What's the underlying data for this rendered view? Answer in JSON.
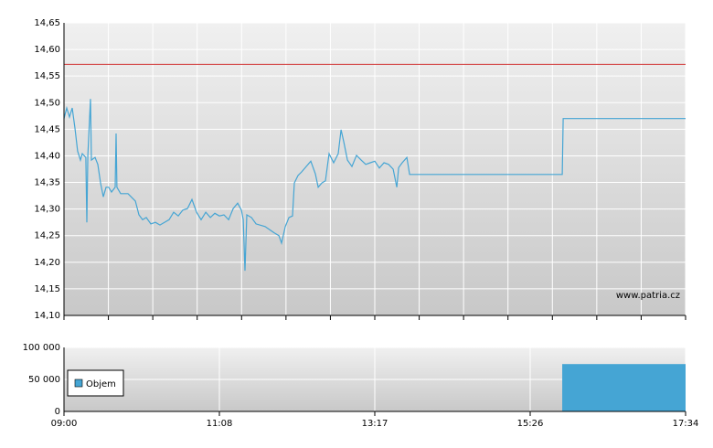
{
  "chart_data": [
    {
      "type": "line",
      "color": "#45a5d4",
      "reference_line": 14.572,
      "reference_color": "#d03030",
      "watermark": "www.patria.cz",
      "xlim": [
        540,
        1054
      ],
      "ylim": [
        14.1,
        14.65
      ],
      "yticks": [
        {
          "value": 14.1,
          "label": "14,10"
        },
        {
          "value": 14.15,
          "label": "14,15"
        },
        {
          "value": 14.2,
          "label": "14,20"
        },
        {
          "value": 14.25,
          "label": "14,25"
        },
        {
          "value": 14.3,
          "label": "14,30"
        },
        {
          "value": 14.35,
          "label": "14,35"
        },
        {
          "value": 14.4,
          "label": "14,40"
        },
        {
          "value": 14.45,
          "label": "14,45"
        },
        {
          "value": 14.5,
          "label": "14,50"
        },
        {
          "value": 14.55,
          "label": "14,55"
        },
        {
          "value": 14.6,
          "label": "14,60"
        },
        {
          "value": 14.65,
          "label": "14,65"
        }
      ],
      "grid": true,
      "x": [
        540.0,
        542.3,
        544.5,
        546.8,
        549.1,
        551.3,
        553.6,
        555.1,
        558.1,
        558.9,
        559.7,
        561.9,
        562.7,
        565.7,
        568.0,
        570.2,
        572.5,
        574.8,
        577.0,
        579.3,
        582.3,
        583.1,
        583.8,
        586.9,
        592.9,
        599.0,
        602.0,
        605.0,
        608.0,
        611.8,
        615.6,
        619.4,
        626.9,
        630.7,
        634.5,
        638.3,
        642.1,
        645.8,
        649.6,
        653.4,
        657.2,
        661.0,
        664.7,
        668.5,
        672.3,
        676.1,
        679.9,
        683.6,
        686.7,
        688.2,
        689.7,
        691.2,
        695.0,
        698.8,
        706.3,
        713.9,
        717.7,
        719.9,
        723.0,
        726.0,
        729.0,
        730.5,
        733.5,
        736.6,
        740.3,
        744.1,
        747.9,
        750.2,
        753.2,
        756.2,
        759.2,
        763.0,
        766.8,
        769.1,
        771.3,
        774.4,
        778.1,
        781.9,
        785.7,
        789.5,
        793.3,
        797.0,
        800.8,
        804.6,
        808.4,
        812.2,
        815.2,
        816.7,
        819.7,
        823.5,
        825.8,
        952.0,
        952.8,
        1054.0
      ],
      "values": [
        14.47,
        14.49,
        14.473,
        14.49,
        14.452,
        14.409,
        14.392,
        14.404,
        14.397,
        14.275,
        14.401,
        14.507,
        14.392,
        14.397,
        14.384,
        14.349,
        14.323,
        14.341,
        14.341,
        14.332,
        14.341,
        14.442,
        14.341,
        14.329,
        14.329,
        14.315,
        14.289,
        14.28,
        14.284,
        14.272,
        14.275,
        14.27,
        14.28,
        14.294,
        14.287,
        14.298,
        14.301,
        14.318,
        14.294,
        14.28,
        14.294,
        14.284,
        14.292,
        14.287,
        14.289,
        14.28,
        14.301,
        14.311,
        14.298,
        14.28,
        14.184,
        14.289,
        14.284,
        14.272,
        14.267,
        14.255,
        14.25,
        14.236,
        14.267,
        14.284,
        14.287,
        14.349,
        14.363,
        14.37,
        14.38,
        14.39,
        14.366,
        14.341,
        14.349,
        14.353,
        14.404,
        14.387,
        14.404,
        14.449,
        14.427,
        14.392,
        14.38,
        14.401,
        14.392,
        14.384,
        14.387,
        14.39,
        14.377,
        14.387,
        14.384,
        14.375,
        14.341,
        14.378,
        14.387,
        14.397,
        14.365,
        14.365,
        14.47,
        14.47
      ]
    },
    {
      "type": "histogram",
      "name": "Objem",
      "color": "#45a5d4",
      "bins": [
        952,
        1054
      ],
      "values": [
        74000
      ],
      "xlim": [
        540,
        1054
      ],
      "xticks": [
        {
          "value": 540,
          "label": "09:00"
        },
        {
          "value": 668.5,
          "label": "11:08"
        },
        {
          "value": 797,
          "label": "13:17"
        },
        {
          "value": 925.5,
          "label": "15:26"
        },
        {
          "value": 1054,
          "label": "17:34"
        }
      ],
      "ylim": [
        0,
        100000
      ],
      "yticks": [
        0,
        {
          "value": 50000,
          "label": "50 000"
        },
        {
          "value": 100000,
          "label": "100 000"
        }
      ],
      "grid": true
    }
  ]
}
